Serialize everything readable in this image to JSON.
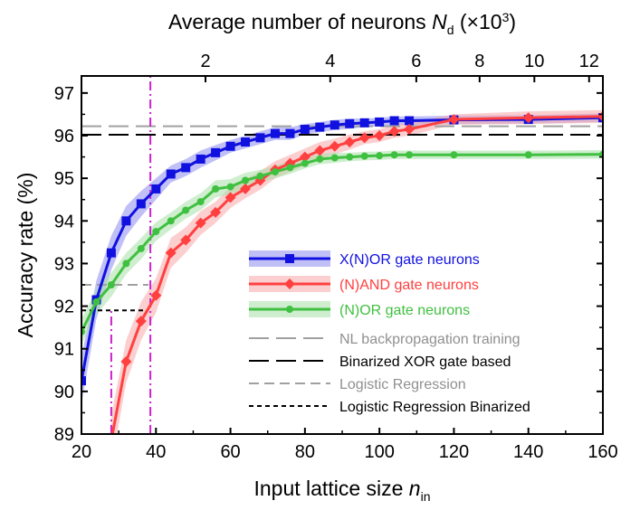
{
  "chart_data": {
    "type": "line",
    "xlabel": "Input lattice size n",
    "xlabel_main": "Input lattice size ",
    "xlabel_var": "n",
    "xlabel_sub": "in",
    "x2label_main": "Average number of neurons ",
    "x2label_var": "N",
    "x2label_sub": "d",
    "x2label_unit_pre": " (×10",
    "x2label_unit_sup": "3",
    "x2label_unit_post": ")",
    "ylabel": "Accuracy rate (%)",
    "xlim": [
      20,
      160
    ],
    "ylim": [
      89,
      97.4
    ],
    "x_ticks": [
      20,
      40,
      60,
      80,
      100,
      120,
      140,
      160
    ],
    "y_ticks": [
      89,
      90,
      91,
      92,
      93,
      94,
      95,
      96,
      97
    ],
    "x2_ticks": [
      {
        "label": "2",
        "x": 53.3
      },
      {
        "label": "4",
        "x": 86.8
      },
      {
        "label": "6",
        "x": 109.9
      },
      {
        "label": "8",
        "x": 126.9
      },
      {
        "label": "10",
        "x": 141.6
      },
      {
        "label": "12",
        "x": 156.3
      }
    ],
    "series": [
      {
        "name": "X(N)OR gate neurons",
        "color": "#1010e0",
        "band_color": "#8c8cf0",
        "marker": "square",
        "x": [
          20,
          24,
          28,
          32,
          36,
          40,
          44,
          48,
          52,
          56,
          60,
          64,
          68,
          72,
          76,
          80,
          84,
          88,
          92,
          96,
          100,
          104,
          108,
          120,
          140,
          160
        ],
        "y": [
          90.25,
          92.15,
          93.25,
          94.0,
          94.4,
          94.75,
          95.1,
          95.25,
          95.45,
          95.6,
          95.75,
          95.85,
          95.95,
          96.05,
          96.05,
          96.15,
          96.2,
          96.25,
          96.28,
          96.3,
          96.32,
          96.35,
          96.35,
          96.37,
          96.38,
          96.42
        ],
        "band": [
          0.55,
          0.45,
          0.4,
          0.35,
          0.3,
          0.25,
          0.2,
          0.2,
          0.2,
          0.18,
          0.15,
          0.15,
          0.15,
          0.15,
          0.15,
          0.12,
          0.12,
          0.12,
          0.12,
          0.1,
          0.1,
          0.1,
          0.1,
          0.1,
          0.1,
          0.1
        ]
      },
      {
        "name": "(N)AND gate neurons",
        "color": "#ff4040",
        "band_color": "#f7a8a8",
        "marker": "diamond",
        "x": [
          28,
          32,
          36,
          40,
          44,
          48,
          52,
          56,
          60,
          64,
          68,
          72,
          76,
          80,
          84,
          88,
          92,
          96,
          100,
          104,
          108,
          120,
          140,
          160
        ],
        "y": [
          88.85,
          90.7,
          91.65,
          92.25,
          93.25,
          93.55,
          93.95,
          94.2,
          94.55,
          94.75,
          94.95,
          95.2,
          95.35,
          95.5,
          95.65,
          95.75,
          95.85,
          95.95,
          96.0,
          96.1,
          96.15,
          96.38,
          96.42,
          96.45
        ],
        "band": [
          0.6,
          0.5,
          0.45,
          0.4,
          0.35,
          0.3,
          0.28,
          0.25,
          0.25,
          0.22,
          0.22,
          0.2,
          0.2,
          0.2,
          0.2,
          0.18,
          0.18,
          0.15,
          0.15,
          0.15,
          0.15,
          0.12,
          0.15,
          0.15
        ]
      },
      {
        "name": "(N)OR gate neurons",
        "color": "#40c040",
        "band_color": "#a8e0a8",
        "marker": "circle",
        "x": [
          20,
          24,
          28,
          32,
          36,
          40,
          44,
          48,
          52,
          56,
          60,
          64,
          68,
          72,
          76,
          80,
          84,
          88,
          92,
          96,
          100,
          104,
          108,
          120,
          140,
          160
        ],
        "y": [
          91.4,
          92.1,
          92.5,
          93.0,
          93.35,
          93.75,
          94.0,
          94.25,
          94.45,
          94.75,
          94.8,
          94.95,
          95.05,
          95.15,
          95.25,
          95.35,
          95.45,
          95.48,
          95.5,
          95.52,
          95.53,
          95.55,
          95.55,
          95.55,
          95.55,
          95.56
        ],
        "band": [
          0.3,
          0.3,
          0.28,
          0.25,
          0.25,
          0.22,
          0.2,
          0.2,
          0.2,
          0.2,
          0.18,
          0.18,
          0.15,
          0.15,
          0.15,
          0.12,
          0.12,
          0.12,
          0.1,
          0.1,
          0.1,
          0.1,
          0.1,
          0.1,
          0.1,
          0.1
        ]
      }
    ],
    "reference_lines": [
      {
        "name": "NL backpropagation training",
        "color": "#a0a0a0",
        "style": "longdash",
        "y": 96.22
      },
      {
        "name": "Binarized XOR gate based",
        "color": "#000000",
        "style": "longdash",
        "y": 96.02
      },
      {
        "name": "Logistic Regression",
        "color": "#a0a0a0",
        "style": "dash",
        "y": 92.5,
        "x_end": 38
      },
      {
        "name": "Logistic Regression Binarized",
        "color": "#000000",
        "style": "shortdash",
        "y": 91.9,
        "x_end": 38
      }
    ],
    "vertical_lines": [
      {
        "color": "#cc22cc",
        "style": "dashdot",
        "x": 28,
        "y_end": 91.9
      },
      {
        "color": "#cc22cc",
        "style": "dashdot",
        "x": 38.5,
        "y_end": 97.4
      }
    ],
    "legend_position": "lower-right"
  }
}
